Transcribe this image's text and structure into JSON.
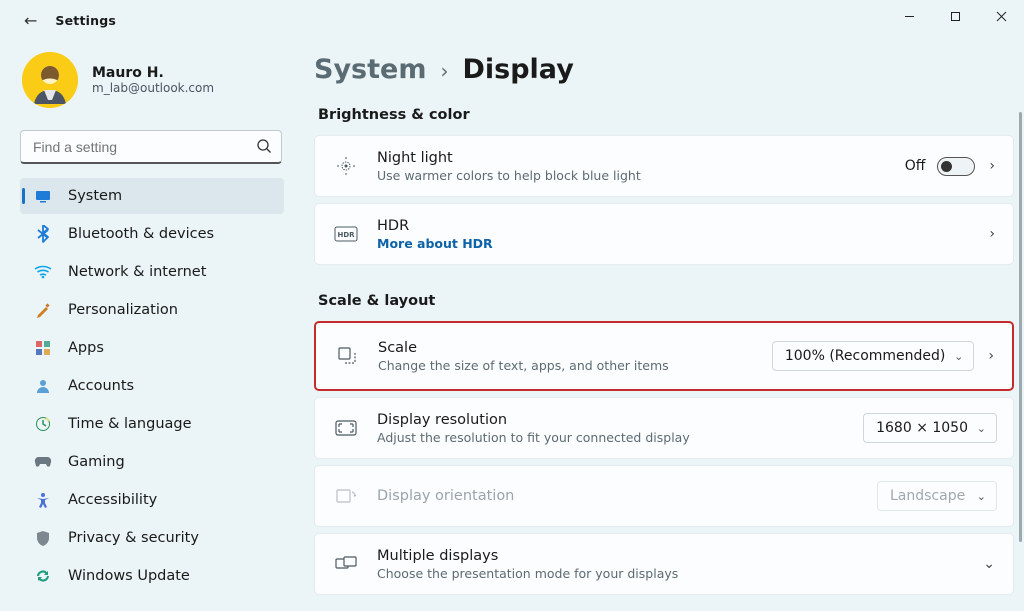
{
  "window": {
    "title": "Settings"
  },
  "profile": {
    "name": "Mauro H.",
    "email": "m_lab@outlook.com"
  },
  "search": {
    "placeholder": "Find a setting"
  },
  "sidebar": {
    "items": [
      {
        "icon": "system",
        "label": "System",
        "active": true,
        "color": "#1e7cd6"
      },
      {
        "icon": "bluetooth",
        "label": "Bluetooth & devices",
        "active": false,
        "color": "#1e7cd6"
      },
      {
        "icon": "network",
        "label": "Network & internet",
        "active": false,
        "color": "#0ea5e9"
      },
      {
        "icon": "personalize",
        "label": "Personalization",
        "active": false,
        "color": "#d08020"
      },
      {
        "icon": "apps",
        "label": "Apps",
        "active": false,
        "color": "#8b5a3c"
      },
      {
        "icon": "accounts",
        "label": "Accounts",
        "active": false,
        "color": "#5aa0d6"
      },
      {
        "icon": "time",
        "label": "Time & language",
        "active": false,
        "color": "#2d9158"
      },
      {
        "icon": "gaming",
        "label": "Gaming",
        "active": false,
        "color": "#6b7780"
      },
      {
        "icon": "accessibility",
        "label": "Accessibility",
        "active": false,
        "color": "#4b70d6"
      },
      {
        "icon": "privacy",
        "label": "Privacy & security",
        "active": false,
        "color": "#7c8790"
      },
      {
        "icon": "update",
        "label": "Windows Update",
        "active": false,
        "color": "#1e9e7a"
      }
    ]
  },
  "breadcrumb": {
    "root": "System",
    "leaf": "Display"
  },
  "sections": {
    "brightness": {
      "heading": "Brightness & color",
      "nightlight": {
        "title": "Night light",
        "sub": "Use warmer colors to help block blue light",
        "state_label": "Off",
        "state": false
      },
      "hdr": {
        "title": "HDR",
        "link": "More about HDR"
      }
    },
    "scale": {
      "heading": "Scale & layout",
      "scale": {
        "title": "Scale",
        "sub": "Change the size of text, apps, and other items",
        "value": "100% (Recommended)"
      },
      "resolution": {
        "title": "Display resolution",
        "sub": "Adjust the resolution to fit your connected display",
        "value": "1680 × 1050"
      },
      "orientation": {
        "title": "Display orientation",
        "value": "Landscape"
      },
      "multiple": {
        "title": "Multiple displays",
        "sub": "Choose the presentation mode for your displays"
      }
    }
  },
  "colors": {
    "accent": "#1673c5",
    "highlight_border": "#c42b2b",
    "background": "#ebf4f7",
    "card_bg": "#fcfdfe",
    "card_border": "#e4eaed",
    "text_secondary": "#5c6b72",
    "link": "#0d62a8"
  }
}
